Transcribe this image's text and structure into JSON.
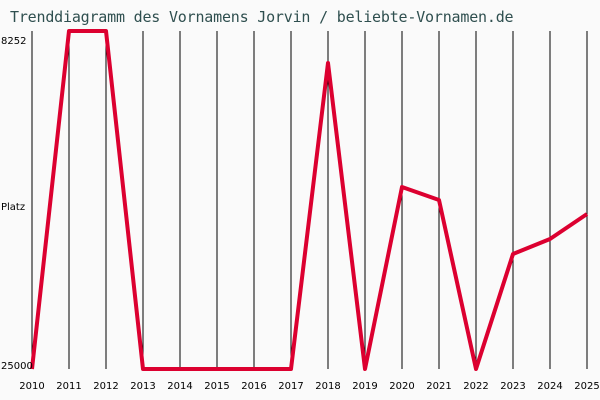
{
  "title": "Trenddiagramm des Vornamens Jorvin / beliebte-Vornamen.de",
  "chart_data": {
    "type": "line",
    "title": "Trenddiagramm des Vornamens Jorvin / beliebte-Vornamen.de",
    "xlabel": "",
    "ylabel": "Platz",
    "y_tick_labels": [
      "8252",
      "25000"
    ],
    "y_inverted": true,
    "ylim": [
      25000,
      8252
    ],
    "grid": "vertical",
    "categories": [
      "2010",
      "2011",
      "2012",
      "2013",
      "2014",
      "2015",
      "2016",
      "2017",
      "2018",
      "2019",
      "2020",
      "2021",
      "2022",
      "2023",
      "2024",
      "2025"
    ],
    "series": [
      {
        "name": "Jorvin",
        "color": "#dc0030",
        "values": [
          25000,
          8252,
          8252,
          25000,
          25000,
          25000,
          25000,
          25000,
          9838,
          25000,
          15982,
          16626,
          25000,
          19302,
          18558,
          17320
        ]
      }
    ]
  },
  "axis": {
    "y_top": "8252",
    "y_mid": "Platz",
    "y_bottom": "25000"
  },
  "colors": {
    "line": "#dc0030",
    "grid": "#000000",
    "title": "#2f4f4f",
    "background": "#fafafa"
  }
}
